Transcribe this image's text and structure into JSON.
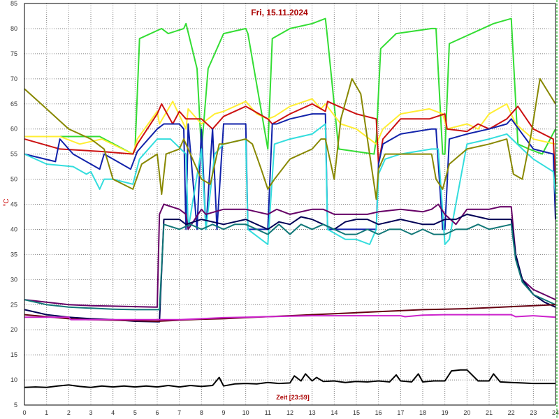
{
  "chart_data": {
    "type": "line",
    "title": "Fri, 15.11.2024",
    "xlabel": "Zeit [23:59]",
    "ylabel": "°C",
    "xlim": [
      0,
      24
    ],
    "ylim": [
      5,
      85
    ],
    "xticks": [
      "0",
      "1",
      "2",
      "3",
      "4",
      "5",
      "6",
      "7",
      "8",
      "9",
      "10",
      "11",
      "12",
      "13",
      "14",
      "15",
      "16",
      "17",
      "18",
      "19",
      "20",
      "21",
      "22",
      "23",
      "24"
    ],
    "yticks": [
      "5",
      "10",
      "15",
      "20",
      "25",
      "30",
      "35",
      "40",
      "45",
      "50",
      "55",
      "60",
      "65",
      "70",
      "75",
      "80",
      "85"
    ],
    "grid": true,
    "legend": "none",
    "colors": {
      "grid": "#808080",
      "border": "#00aa00",
      "title": "#aa0000"
    },
    "series": [
      {
        "color": "#33dd33",
        "x": [
          0,
          1.6,
          3.4,
          4.9,
          5.0,
          5.2,
          6.2,
          6.5,
          7.2,
          7.3,
          7.8,
          8.0,
          8.3,
          9.0,
          10.0,
          10.1,
          11.0,
          11.2,
          12.0,
          13.0,
          13.6,
          13.7,
          14.2,
          15.8,
          15.9,
          16.1,
          16.8,
          18.4,
          18.6,
          18.9,
          19.0,
          19.2,
          21.2,
          22.0,
          22.3,
          22.8,
          23.4,
          24.0
        ],
        "y": [
          58.5,
          58.5,
          58.5,
          55,
          56,
          78,
          80,
          79,
          80,
          81,
          72,
          55.5,
          72,
          79,
          80,
          79,
          56,
          78,
          80,
          81,
          82,
          78,
          56,
          55,
          58,
          76,
          79,
          80,
          80,
          55,
          55,
          77,
          81,
          82,
          57,
          56,
          55,
          60
        ]
      },
      {
        "color": "#ffee33",
        "x": [
          0,
          1.6,
          2.5,
          3.5,
          4.9,
          5.1,
          6.0,
          6.1,
          6.7,
          7.3,
          7.4,
          8.0,
          8.6,
          9.0,
          10.0,
          10.5,
          11.0,
          11.3,
          12.0,
          13.0,
          13.4,
          13.6,
          14.3,
          15.0,
          15.9,
          16.2,
          17.0,
          18.3,
          18.9,
          19.1,
          20.0,
          20.5,
          21.0,
          21.8,
          22.2,
          23.0,
          24.0
        ],
        "y": [
          58.5,
          58.5,
          57,
          58,
          55,
          58,
          63.5,
          61,
          65.5,
          60,
          64,
          61,
          63,
          63.5,
          65.5,
          63,
          62,
          62.5,
          64.5,
          66,
          64,
          65,
          61,
          60,
          57,
          60,
          63,
          64,
          63,
          60,
          61,
          60,
          63,
          65,
          61,
          58,
          57
        ]
      },
      {
        "color": "#cc1111",
        "x": [
          0,
          1.6,
          3.5,
          4.9,
          5.1,
          6.0,
          6.2,
          6.7,
          7.0,
          7.3,
          8.0,
          8.5,
          9.0,
          10.0,
          11.0,
          11.2,
          12.0,
          13.0,
          13.6,
          13.7,
          14.2,
          15.0,
          15.9,
          16.0,
          16.2,
          17.0,
          18.3,
          19.0,
          19.1,
          20.0,
          20.5,
          21.0,
          21.8,
          22.3,
          23.0,
          23.9,
          24.0
        ],
        "y": [
          58,
          56,
          55.5,
          55,
          57,
          63,
          65,
          61,
          63.5,
          62,
          62,
          60,
          62.5,
          64.5,
          62,
          61,
          63,
          65,
          63.5,
          65.5,
          64.5,
          63,
          62,
          53,
          58,
          62,
          62,
          63,
          60,
          59.5,
          61,
          60,
          62,
          64.5,
          60,
          58,
          49
        ]
      },
      {
        "color": "#1122aa",
        "x": [
          0,
          1.4,
          1.6,
          2.2,
          3.0,
          3.4,
          3.6,
          4.0,
          4.8,
          5.1,
          6.0,
          6.3,
          7.0,
          7.2,
          7.3,
          7.4,
          7.8,
          8.0,
          8.2,
          8.5,
          8.7,
          9.0,
          10.0,
          10.1,
          11.0,
          11.2,
          11.4,
          12.0,
          13.0,
          13.6,
          13.7,
          13.8,
          14.3,
          15.0,
          15.9,
          16.0,
          16.2,
          17.0,
          18.4,
          18.6,
          18.9,
          19.0,
          19.2,
          20.0,
          21.0,
          21.8,
          22.0,
          23.0,
          23.9,
          24.0
        ],
        "y": [
          55,
          53.5,
          58,
          55,
          53,
          52,
          55,
          54,
          52,
          55.5,
          60,
          61,
          61,
          60,
          40,
          61,
          40,
          60,
          40,
          60,
          40,
          61,
          61,
          40,
          40,
          61,
          61,
          62,
          63,
          63,
          40,
          40,
          40,
          40,
          40,
          53,
          57,
          59,
          60,
          60,
          40,
          40,
          58,
          59,
          60,
          61,
          62,
          56,
          55,
          42
        ]
      },
      {
        "color": "#33dddd",
        "x": [
          0,
          1.0,
          2.2,
          2.8,
          3.0,
          3.4,
          3.6,
          4.0,
          4.9,
          5.2,
          6.0,
          6.3,
          6.6,
          7.3,
          7.4,
          8.0,
          8.2,
          8.6,
          9.0,
          10.0,
          10.1,
          11.0,
          11.3,
          12.0,
          13.0,
          13.6,
          13.7,
          14.5,
          15.0,
          15.6,
          15.9,
          16.0,
          16.3,
          17.0,
          18.4,
          18.7,
          19.0,
          19.2,
          20.0,
          21.0,
          21.8,
          22.5,
          23.0,
          23.9,
          24.0
        ],
        "y": [
          55,
          53,
          52.5,
          51,
          51.5,
          48,
          50,
          50,
          49,
          54,
          58,
          58,
          58,
          55,
          40,
          56,
          40,
          55,
          57,
          58,
          40,
          37,
          57,
          58,
          59,
          61,
          40,
          38,
          38,
          37,
          40,
          51,
          54,
          55,
          56,
          56,
          37,
          38,
          57,
          58,
          59,
          56,
          54,
          51.5,
          47
        ]
      },
      {
        "color": "#888800",
        "x": [
          0,
          1.0,
          2.0,
          3.0,
          3.6,
          4.0,
          4.9,
          5.3,
          6.0,
          6.2,
          6.4,
          7.0,
          7.2,
          8.0,
          8.4,
          8.8,
          9.0,
          10.0,
          10.3,
          10.7,
          11.0,
          11.3,
          12.0,
          13.0,
          13.4,
          13.6,
          14.0,
          14.3,
          14.8,
          15.2,
          15.9,
          16.0,
          16.3,
          17.0,
          18.4,
          18.6,
          18.9,
          19.2,
          20.0,
          21.0,
          21.8,
          22.1,
          22.5,
          22.9,
          23.3,
          24.0
        ],
        "y": [
          68,
          64,
          60,
          58,
          56,
          50,
          48,
          53,
          55,
          47,
          55,
          56,
          58,
          50,
          49,
          57,
          57,
          58,
          57,
          52,
          48,
          50,
          54,
          56,
          58,
          58,
          50,
          62,
          70,
          67,
          46,
          52,
          55,
          55,
          55,
          50,
          48,
          53,
          56,
          57,
          58,
          51,
          50,
          59,
          70,
          65
        ]
      },
      {
        "color": "#660066",
        "x": [
          0,
          1.0,
          2.0,
          3.0,
          4.0,
          5.0,
          5.9,
          6.0,
          6.1,
          6.3,
          7.0,
          7.3,
          7.4,
          8.0,
          8.2,
          9.0,
          10.0,
          10.5,
          11.0,
          11.4,
          12.0,
          13.0,
          13.5,
          14.0,
          14.3,
          15.0,
          15.5,
          16.0,
          17.0,
          18.0,
          18.4,
          18.7,
          19.0,
          19.5,
          20.0,
          21.0,
          21.5,
          22.0,
          22.2,
          22.5,
          23.0,
          23.5,
          24.0
        ],
        "y": [
          26,
          25.5,
          25,
          24.8,
          24.7,
          24.6,
          24.5,
          24.5,
          43,
          45,
          44,
          43,
          40,
          44,
          43,
          44,
          44,
          43.5,
          43,
          44,
          43,
          44,
          44,
          43,
          43,
          43,
          43,
          43.5,
          44,
          43.5,
          44,
          45,
          43,
          41,
          44,
          44,
          44.5,
          44.5,
          35,
          30,
          28,
          27,
          26
        ]
      },
      {
        "color": "#000055",
        "x": [
          0,
          1.0,
          2.0,
          3.0,
          4.0,
          5.0,
          6.0,
          6.1,
          6.3,
          7.0,
          7.3,
          8.0,
          9.0,
          10.0,
          10.5,
          11.0,
          11.5,
          12.0,
          12.5,
          13.0,
          13.5,
          14.0,
          14.5,
          15.0,
          15.5,
          16.0,
          17.0,
          18.0,
          18.5,
          19.0,
          19.5,
          20.0,
          21.0,
          22.0,
          22.2,
          22.5,
          23.0,
          23.5,
          24.0
        ],
        "y": [
          24,
          23,
          22.5,
          22.2,
          22,
          21.7,
          21.6,
          21.6,
          42,
          42,
          41,
          42,
          41,
          42,
          41,
          40,
          41.5,
          41,
          42.5,
          42,
          41,
          40,
          41.5,
          42,
          42,
          41,
          42,
          41,
          41,
          42,
          42,
          43,
          42,
          42,
          35,
          30,
          27,
          25.5,
          24.5
        ]
      },
      {
        "color": "#117777",
        "x": [
          0,
          1.0,
          2.0,
          3.0,
          4.0,
          5.0,
          6.0,
          6.1,
          6.3,
          7.0,
          7.5,
          8.0,
          8.5,
          9.0,
          9.5,
          10.0,
          10.5,
          11.0,
          11.5,
          12.0,
          12.5,
          13.0,
          13.5,
          14.0,
          14.5,
          15.0,
          15.5,
          16.0,
          16.5,
          17.0,
          17.5,
          18.0,
          18.5,
          19.0,
          19.5,
          20.0,
          20.5,
          21.0,
          21.5,
          22.0,
          22.2,
          22.5,
          23.0,
          23.5,
          24.0
        ],
        "y": [
          26,
          25,
          24.5,
          24.3,
          24.1,
          24,
          24,
          24,
          41,
          40,
          41,
          40,
          41,
          40,
          41,
          41,
          40,
          39,
          41,
          39,
          41,
          40,
          41,
          40,
          39,
          39,
          40,
          39,
          40,
          40,
          39,
          40,
          39,
          39,
          40,
          40,
          41,
          40,
          40.5,
          41,
          34,
          29.5,
          27,
          26,
          25
        ]
      },
      {
        "color": "#660011",
        "x": [
          0,
          1.0,
          2.0,
          3.0,
          4.0,
          5.0,
          6.0,
          7.0,
          8.0,
          9.0,
          10.0,
          11.0,
          12.0,
          13.0,
          14.0,
          15.0,
          16.0,
          17.0,
          18.0,
          19.0,
          20.0,
          21.0,
          22.0,
          23.0,
          24.0
        ],
        "y": [
          23,
          22.6,
          22.2,
          22,
          21.9,
          21.8,
          21.7,
          21.9,
          22.1,
          22.2,
          22.4,
          22.6,
          22.8,
          23,
          23.2,
          23.4,
          23.6,
          23.8,
          24,
          24.1,
          24.2,
          24.4,
          24.6,
          24.8,
          25
        ]
      },
      {
        "color": "#cc22cc",
        "x": [
          0,
          1.0,
          2.0,
          2.1,
          3.0,
          4.0,
          5.0,
          6.0,
          7.0,
          8.0,
          9.0,
          10.0,
          11.0,
          12.0,
          13.0,
          14.0,
          15.0,
          16.0,
          17.0,
          17.2,
          18.0,
          19.0,
          20.0,
          21.0,
          22.0,
          22.2,
          23.0,
          24.0
        ],
        "y": [
          22.5,
          22.5,
          22.5,
          22,
          22,
          22,
          22,
          22,
          22,
          22.2,
          22.4,
          22.5,
          22.6,
          22.7,
          22.8,
          22.8,
          22.8,
          22.8,
          22.8,
          22.6,
          22.9,
          23,
          23,
          23,
          23,
          22.6,
          22.8,
          22.5
        ]
      },
      {
        "color": "#000000",
        "x": [
          0,
          0.5,
          1.0,
          1.5,
          2.0,
          2.5,
          3.0,
          3.5,
          4.0,
          4.5,
          5.0,
          5.5,
          6.0,
          6.5,
          7.0,
          7.5,
          8.0,
          8.5,
          8.8,
          9.0,
          9.5,
          10.0,
          10.5,
          11.0,
          11.5,
          12.0,
          12.2,
          12.5,
          12.7,
          13.0,
          13.2,
          13.5,
          14.0,
          14.5,
          15.0,
          15.5,
          16.0,
          16.5,
          16.8,
          17.0,
          17.5,
          17.8,
          18.0,
          18.5,
          19.0,
          19.3,
          19.7,
          20.0,
          20.5,
          21.0,
          21.2,
          21.5,
          22.0,
          22.5,
          23.0,
          23.5,
          24.0
        ],
        "y": [
          8.5,
          8.6,
          8.5,
          8.8,
          9,
          8.7,
          8.5,
          8.8,
          8.6,
          8.8,
          8.6,
          8.8,
          8.6,
          8.9,
          8.6,
          8.9,
          8.7,
          8.9,
          10.5,
          8.8,
          9.2,
          9.3,
          9.2,
          9.5,
          9.3,
          9.4,
          10.8,
          9.8,
          11.2,
          9.8,
          10.5,
          9.7,
          9.8,
          9.5,
          9.7,
          9.6,
          9.8,
          9.6,
          11,
          9.8,
          9.6,
          11.2,
          9.6,
          9.8,
          9.8,
          11.8,
          12,
          12,
          9.8,
          9.8,
          11.2,
          9.6,
          9.5,
          9.4,
          9.3,
          9.3,
          9.3
        ]
      }
    ]
  }
}
